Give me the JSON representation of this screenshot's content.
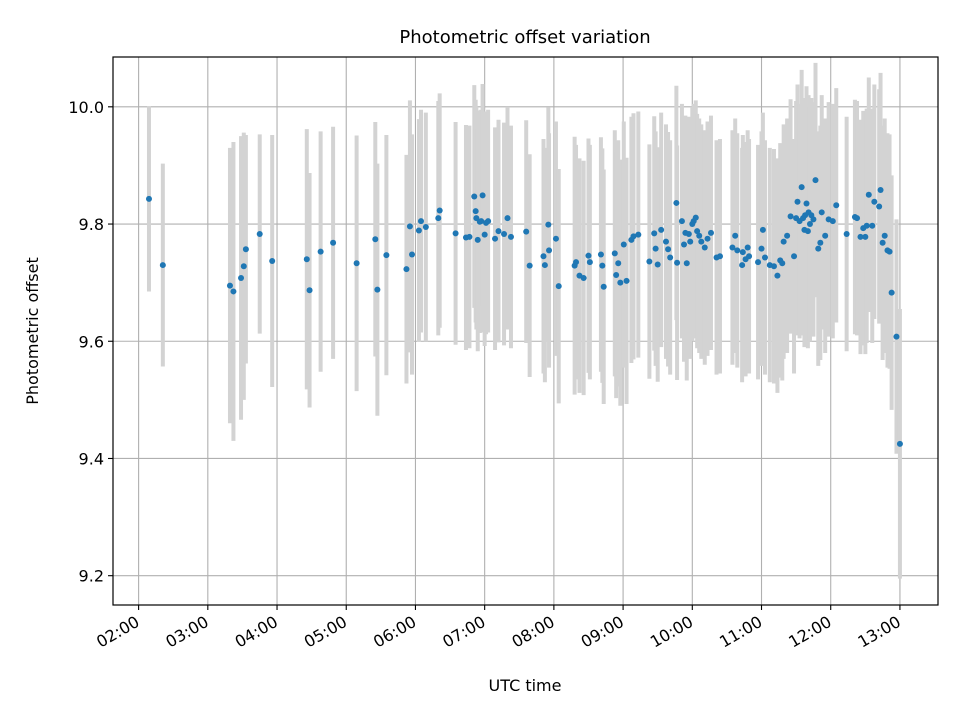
{
  "chart_data": {
    "type": "scatter",
    "title": "Photometric offset variation",
    "xlabel": "UTC time",
    "ylabel": "Photometric offset",
    "grid": true,
    "xlim": [
      1.63,
      13.55
    ],
    "ylim": [
      9.15,
      10.085
    ],
    "x_ticks": [
      2,
      3,
      4,
      5,
      6,
      7,
      8,
      9,
      10,
      11,
      12,
      13
    ],
    "x_tick_labels": [
      "02:00",
      "03:00",
      "04:00",
      "05:00",
      "06:00",
      "07:00",
      "08:00",
      "09:00",
      "10:00",
      "11:00",
      "12:00",
      "13:00"
    ],
    "y_ticks": [
      9.2,
      9.4,
      9.6,
      9.8,
      10.0
    ],
    "y_tick_labels": [
      "9.2",
      "9.4",
      "9.6",
      "9.8",
      "10.0"
    ],
    "colors": {
      "point": "#1f77b4",
      "errorbar": "#d3d3d3",
      "grid": "#b0b0b0"
    },
    "series": [
      {
        "name": "offset",
        "x_hours": [
          2.15,
          2.35,
          3.32,
          3.37,
          3.48,
          3.52,
          3.55,
          3.75,
          3.93,
          4.43,
          4.47,
          4.63,
          4.81,
          5.15,
          5.42,
          5.45,
          5.58,
          5.87,
          5.92,
          5.95,
          6.05,
          6.08,
          6.15,
          6.33,
          6.35,
          6.58,
          6.73,
          6.78,
          6.85,
          6.87,
          6.88,
          6.9,
          6.93,
          6.95,
          6.97,
          7.0,
          7.02,
          7.05,
          7.15,
          7.2,
          7.28,
          7.33,
          7.38,
          7.6,
          7.65,
          7.85,
          7.87,
          7.92,
          7.93,
          8.03,
          8.07,
          8.3,
          8.32,
          8.37,
          8.43,
          8.5,
          8.52,
          8.68,
          8.7,
          8.72,
          8.88,
          8.9,
          8.93,
          8.96,
          9.01,
          9.05,
          9.12,
          9.15,
          9.22,
          9.38,
          9.45,
          9.47,
          9.5,
          9.55,
          9.62,
          9.65,
          9.68,
          9.77,
          9.78,
          9.85,
          9.88,
          9.9,
          9.92,
          9.95,
          9.97,
          10.0,
          10.02,
          10.05,
          10.07,
          10.1,
          10.13,
          10.18,
          10.22,
          10.27,
          10.35,
          10.4,
          10.58,
          10.62,
          10.65,
          10.72,
          10.73,
          10.77,
          10.8,
          10.82,
          10.95,
          11.0,
          11.02,
          11.05,
          11.12,
          11.18,
          11.23,
          11.27,
          11.3,
          11.32,
          11.37,
          11.42,
          11.47,
          11.5,
          11.52,
          11.55,
          11.58,
          11.6,
          11.62,
          11.63,
          11.65,
          11.67,
          11.68,
          11.7,
          11.72,
          11.75,
          11.78,
          11.82,
          11.85,
          11.87,
          11.92,
          11.97,
          12.03,
          12.08,
          12.23,
          12.35,
          12.38,
          12.43,
          12.47,
          12.5,
          12.52,
          12.55,
          12.6,
          12.63,
          12.7,
          12.72,
          12.75,
          12.78,
          12.82,
          12.85,
          12.88,
          12.95,
          13.0
        ],
        "y_values": [
          9.843,
          9.73,
          9.695,
          9.685,
          9.708,
          9.728,
          9.757,
          9.783,
          9.737,
          9.74,
          9.687,
          9.753,
          9.768,
          9.733,
          9.774,
          9.688,
          9.747,
          9.723,
          9.796,
          9.748,
          9.789,
          9.805,
          9.795,
          9.81,
          9.823,
          9.784,
          9.777,
          9.778,
          9.847,
          9.822,
          9.81,
          9.773,
          9.804,
          9.805,
          9.849,
          9.782,
          9.802,
          9.805,
          9.775,
          9.788,
          9.783,
          9.81,
          9.778,
          9.787,
          9.729,
          9.745,
          9.73,
          9.799,
          9.755,
          9.775,
          9.694,
          9.729,
          9.735,
          9.712,
          9.708,
          9.746,
          9.735,
          9.748,
          9.729,
          9.693,
          9.75,
          9.713,
          9.733,
          9.7,
          9.765,
          9.703,
          9.773,
          9.779,
          9.782,
          9.736,
          9.784,
          9.758,
          9.731,
          9.79,
          9.77,
          9.757,
          9.743,
          9.836,
          9.734,
          9.805,
          9.765,
          9.785,
          9.733,
          9.783,
          9.77,
          9.8,
          9.805,
          9.811,
          9.788,
          9.78,
          9.77,
          9.76,
          9.775,
          9.785,
          9.743,
          9.745,
          9.76,
          9.78,
          9.755,
          9.73,
          9.752,
          9.74,
          9.76,
          9.745,
          9.735,
          9.758,
          9.79,
          9.743,
          9.73,
          9.728,
          9.712,
          9.738,
          9.733,
          9.77,
          9.78,
          9.813,
          9.745,
          9.81,
          9.838,
          9.805,
          9.863,
          9.81,
          9.79,
          9.815,
          9.835,
          9.788,
          9.82,
          9.8,
          9.815,
          9.808,
          9.875,
          9.758,
          9.768,
          9.82,
          9.78,
          9.808,
          9.805,
          9.832,
          9.783,
          9.812,
          9.81,
          9.778,
          9.793,
          9.778,
          9.797,
          9.85,
          9.797,
          9.838,
          9.83,
          9.858,
          9.768,
          9.78,
          9.755,
          9.753,
          9.683,
          9.608,
          9.425
        ],
        "error_half_width": [
          0.158,
          0.173,
          0.235,
          0.255,
          0.242,
          0.228,
          0.195,
          0.17,
          0.215,
          0.222,
          0.2,
          0.205,
          0.198,
          0.218,
          0.2,
          0.215,
          0.205,
          0.195,
          0.215,
          0.205,
          0.19,
          0.19,
          0.195,
          0.2,
          0.2,
          0.19,
          0.192,
          0.19,
          0.19,
          0.19,
          0.19,
          0.19,
          0.19,
          0.19,
          0.19,
          0.19,
          0.19,
          0.19,
          0.19,
          0.19,
          0.19,
          0.19,
          0.19,
          0.19,
          0.19,
          0.2,
          0.2,
          0.2,
          0.2,
          0.2,
          0.2,
          0.22,
          0.2,
          0.2,
          0.2,
          0.2,
          0.2,
          0.2,
          0.2,
          0.2,
          0.21,
          0.21,
          0.21,
          0.21,
          0.21,
          0.21,
          0.21,
          0.21,
          0.21,
          0.2,
          0.2,
          0.2,
          0.2,
          0.2,
          0.2,
          0.2,
          0.2,
          0.2,
          0.2,
          0.2,
          0.2,
          0.2,
          0.2,
          0.2,
          0.2,
          0.2,
          0.2,
          0.2,
          0.2,
          0.2,
          0.2,
          0.2,
          0.2,
          0.2,
          0.2,
          0.2,
          0.2,
          0.2,
          0.2,
          0.2,
          0.2,
          0.2,
          0.2,
          0.2,
          0.2,
          0.2,
          0.2,
          0.2,
          0.2,
          0.2,
          0.2,
          0.2,
          0.2,
          0.2,
          0.2,
          0.2,
          0.2,
          0.2,
          0.2,
          0.2,
          0.2,
          0.2,
          0.2,
          0.2,
          0.2,
          0.2,
          0.2,
          0.2,
          0.2,
          0.2,
          0.2,
          0.2,
          0.2,
          0.2,
          0.2,
          0.2,
          0.2,
          0.2,
          0.2,
          0.2,
          0.2,
          0.2,
          0.2,
          0.2,
          0.2,
          0.2,
          0.2,
          0.2,
          0.2,
          0.2,
          0.2,
          0.2,
          0.2,
          0.2,
          0.2,
          0.2,
          0.23
        ]
      }
    ]
  }
}
